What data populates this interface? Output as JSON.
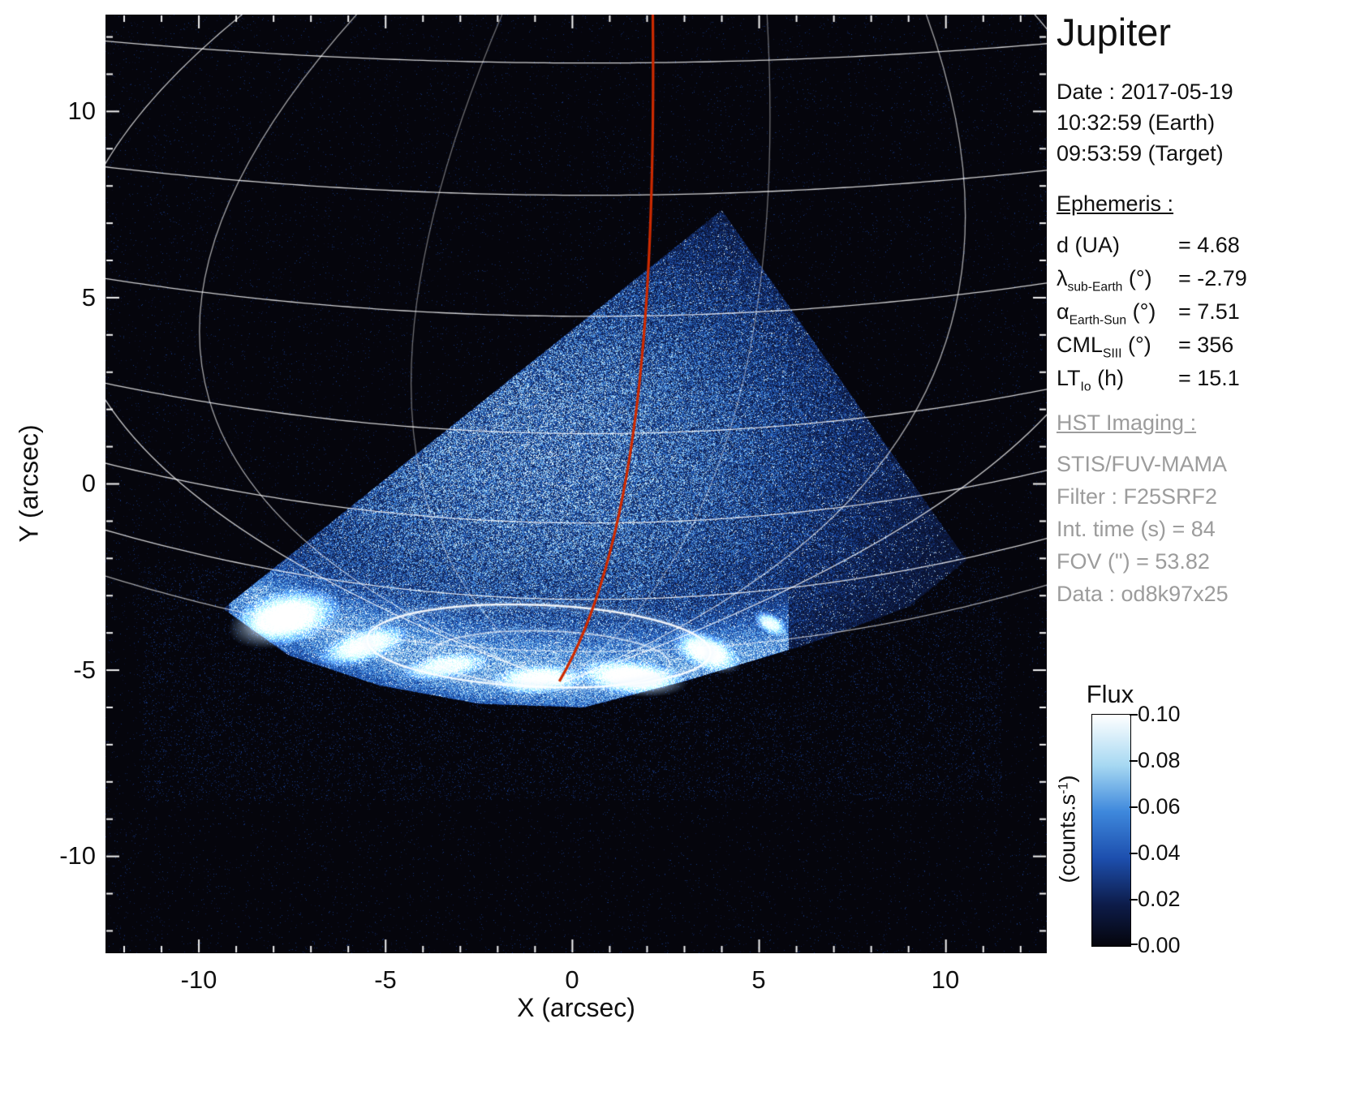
{
  "header": {
    "title": "Jupiter",
    "date": "Date : 2017-05-19",
    "time_earth": "10:32:59 (Earth)",
    "time_target": "09:53:59 (Target)"
  },
  "ephemeris": {
    "heading": "Ephemeris :",
    "rows": [
      {
        "sym": "d (UA)",
        "sub": "",
        "unit": "",
        "value": "= 4.68"
      },
      {
        "sym": "λ",
        "sub": "sub-Earth",
        "unit": " (°)",
        "value": "= -2.79"
      },
      {
        "sym": "α",
        "sub": "Earth-Sun",
        "unit": " (°)",
        "value": "= 7.51"
      },
      {
        "sym": "CML",
        "sub": "SIII",
        "unit": " (°)",
        "value": "= 356"
      },
      {
        "sym": "LT",
        "sub": "Io",
        "unit": " (h)",
        "value": "= 15.1"
      }
    ]
  },
  "hst": {
    "heading": "HST Imaging :",
    "lines": [
      "STIS/FUV-MAMA",
      "Filter : F25SRF2",
      "Int. time (s) = 84",
      "FOV (\") = 53.82",
      "Data : od8k97x25"
    ]
  },
  "axes": {
    "xlabel": "X (arcsec)",
    "ylabel": "Y (arcsec)",
    "xticks": [
      "-10",
      "-5",
      "0",
      "5",
      "10"
    ],
    "yticks": [
      "10",
      "5",
      "0",
      "-5",
      "-10"
    ]
  },
  "colorbar": {
    "title": "Flux",
    "unit_main": "(counts.s",
    "unit_sup": "-1",
    "unit_close": ")",
    "ticks": [
      "0.10",
      "0.08",
      "0.06",
      "0.04",
      "0.02",
      "0.00"
    ]
  },
  "chart_data": {
    "type": "heatmap",
    "title": "HST far-UV image of Jupiter aurora (STIS/FUV-MAMA, F25SRF2)",
    "xlabel": "X (arcsec)",
    "ylabel": "Y (arcsec)",
    "xlim": [
      -12.5,
      12.7
    ],
    "ylim": [
      -12.6,
      12.6
    ],
    "xticks": [
      -10,
      -5,
      0,
      5,
      10
    ],
    "yticks": [
      -10,
      -5,
      0,
      5,
      10
    ],
    "flux_min": 0.0,
    "flux_max": 0.1,
    "flux_ticks": [
      0.0,
      0.02,
      0.04,
      0.06,
      0.08,
      0.1
    ],
    "flux_units": "counts.s-1",
    "background": "#000000",
    "grid": "white planetary latitude-longitude graticule",
    "colormap_stops": [
      [
        0.0,
        "#05050c"
      ],
      [
        0.18,
        "#0d1c4a"
      ],
      [
        0.38,
        "#1d4fae"
      ],
      [
        0.58,
        "#3e88dc"
      ],
      [
        0.78,
        "#a6d8f2"
      ],
      [
        1.0,
        "#ffffff"
      ]
    ],
    "detector_wedge": [
      [
        4.0,
        7.35
      ],
      [
        10.55,
        -2.05
      ],
      [
        9.0,
        -3.3
      ],
      [
        6.3,
        -4.3
      ],
      [
        3.0,
        -5.3
      ],
      [
        0.3,
        -6.0
      ],
      [
        -2.5,
        -5.9
      ],
      [
        -5.2,
        -5.4
      ],
      [
        -7.6,
        -4.6
      ],
      [
        -9.35,
        -3.35
      ]
    ],
    "noise": {
      "center": [
        -1.0,
        0.8
      ],
      "sigma": [
        6.5,
        4.8
      ],
      "speckle": 0.1
    },
    "aurora_band": {
      "y0": -5.2,
      "curv": 0.025,
      "xc": 0.5,
      "sigma": 0.8,
      "amp": 0.5,
      "xspan": [
        -9.2,
        5.8
      ]
    },
    "aurora_blobs": [
      [
        -7.7,
        -3.6,
        1.55,
        0.75,
        0.25,
        1.0
      ],
      [
        -5.6,
        -4.35,
        1.3,
        0.45,
        0.3,
        0.85
      ],
      [
        -3.4,
        -4.9,
        1.2,
        0.35,
        0.15,
        0.75
      ],
      [
        -0.9,
        -5.25,
        1.3,
        0.4,
        0.05,
        0.9
      ],
      [
        1.6,
        -5.2,
        1.5,
        0.5,
        -0.1,
        1.0
      ],
      [
        3.6,
        -4.5,
        1.0,
        0.5,
        -0.4,
        0.95
      ],
      [
        5.3,
        -3.75,
        0.5,
        0.28,
        -0.5,
        0.85
      ]
    ],
    "aurora_ovals": [
      {
        "cx": -0.9,
        "cy": -4.35,
        "rx": 4.6,
        "ry": 1.1,
        "rot": -0.04,
        "width": 2.5,
        "alpha": 0.9
      },
      {
        "cx": -0.6,
        "cy": -4.7,
        "rx": 3.2,
        "ry": 0.75,
        "rot": -0.04,
        "width": 1.8,
        "alpha": 0.6
      }
    ],
    "graticule": {
      "pole": [
        -0.3,
        -5.35
      ],
      "latitudes": [
        {
          "y0": 11.3,
          "k": 0.0035
        },
        {
          "y0": 7.75,
          "k": 0.0045
        },
        {
          "y0": 4.5,
          "k": 0.006
        },
        {
          "y0": 1.35,
          "k": 0.008
        },
        {
          "y0": -1.05,
          "k": 0.0095
        },
        {
          "y0": -3.1,
          "k": 0.011
        },
        {
          "y0": -4.5,
          "k": 0.012,
          "alpha": 0.7
        }
      ],
      "meridians": [
        {
          "ctrl": [
            -21.5,
            2.5
          ],
          "end": [
            -8.6,
            12.8
          ]
        },
        {
          "ctrl": [
            -16.5,
            0.8
          ],
          "end": [
            -5.6,
            12.8
          ],
          "alpha": 0.7
        },
        {
          "ctrl": [
            -7.5,
            -0.5
          ],
          "end": [
            -1.8,
            12.8
          ],
          "alpha": 0.45
        },
        {
          "ctrl": [
            6.0,
            -0.8
          ],
          "end": [
            5.2,
            12.8
          ],
          "alpha": 0.45
        },
        {
          "ctrl": [
            14.0,
            0.5
          ],
          "end": [
            9.4,
            12.8
          ],
          "alpha": 0.7
        },
        {
          "ctrl": [
            21.5,
            2.5
          ],
          "end": [
            12.2,
            12.8
          ]
        }
      ]
    },
    "red_meridian": {
      "color": "#cc2a00",
      "start": [
        2.15,
        12.8
      ],
      "c1": [
        2.25,
        4.5
      ],
      "c2": [
        1.7,
        -1.8
      ],
      "end": [
        -0.35,
        -5.3
      ]
    }
  }
}
